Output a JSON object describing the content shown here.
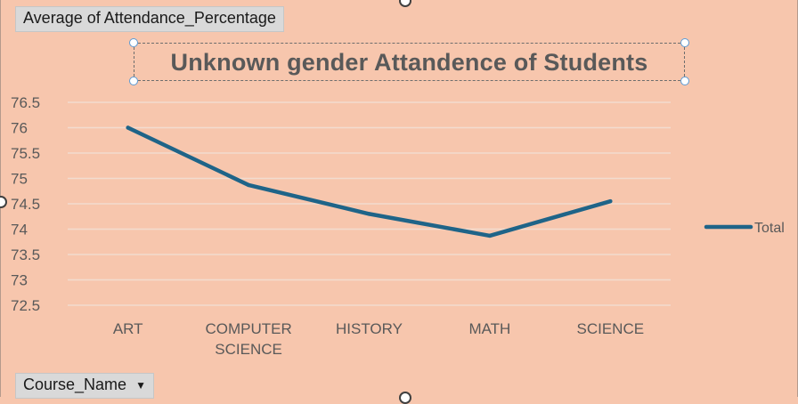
{
  "pivot": {
    "value_field": "Average of Attendance_Percentage",
    "axis_field": "Course_Name",
    "axis_dropdown_icon": "chevron-down-icon"
  },
  "chart_data": {
    "type": "line",
    "title": "Unknown gender Attandence of Students",
    "categories": [
      "ART",
      "COMPUTER SCIENCE",
      "HISTORY",
      "MATH",
      "SCIENCE"
    ],
    "category_lines": [
      [
        "ART"
      ],
      [
        "COMPUTER",
        "SCIENCE"
      ],
      [
        "HISTORY"
      ],
      [
        "MATH"
      ],
      [
        "SCIENCE"
      ]
    ],
    "series": [
      {
        "name": "Total",
        "values": [
          76.0,
          74.87,
          74.3,
          73.87,
          74.55
        ],
        "color": "#1f6488"
      }
    ],
    "ylim": [
      72.5,
      76.5
    ],
    "yticks": [
      "76.5",
      "76",
      "75.5",
      "75",
      "74.5",
      "74",
      "73.5",
      "73",
      "72.5"
    ],
    "grid": true,
    "legend_position": "right",
    "gridline_color": "#f2dccf"
  }
}
